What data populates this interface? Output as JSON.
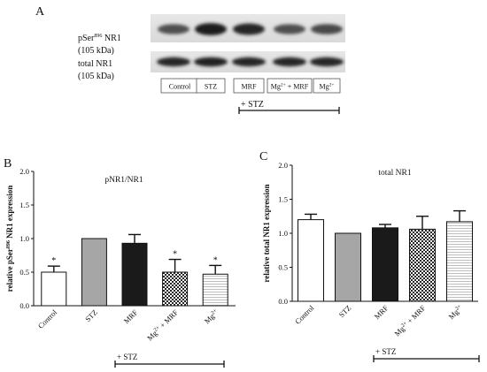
{
  "panel_a": {
    "label": "A",
    "row1_label_pre": "pSer",
    "row1_label_sup": "896",
    "row1_label_post": " NR1",
    "row1_kda": "(105 kDa)",
    "row2_label": "total NR1",
    "row2_kda": "(105 kDa)",
    "lanes": [
      {
        "main": "Control",
        "sup": "",
        "tail": ""
      },
      {
        "main": "STZ",
        "sup": "",
        "tail": ""
      },
      {
        "main": "MRF",
        "sup": "",
        "tail": ""
      },
      {
        "main": "Mg",
        "sup": "2+",
        "tail": " + MRF"
      },
      {
        "main": "Mg",
        "sup": "2+",
        "tail": ""
      }
    ],
    "row1_band_intensity": [
      0.55,
      0.95,
      0.85,
      0.55,
      0.6
    ],
    "row2_band_intensity": [
      0.85,
      0.9,
      0.85,
      0.85,
      0.85
    ],
    "stz_bracket_label": "+ STZ"
  },
  "chart_data": [
    {
      "panel": "B",
      "type": "bar",
      "title": "pNR1/NR1",
      "ylabel_pre": "relative pSer",
      "ylabel_sup": "896",
      "ylabel_post": " NR1 expression",
      "ylim": [
        0.0,
        2.0
      ],
      "yticks": [
        "0.0",
        "0.5",
        "1.0",
        "1.5",
        "2.0"
      ],
      "categories": [
        {
          "main": "Control",
          "sup": "",
          "tail": ""
        },
        {
          "main": "STZ",
          "sup": "",
          "tail": ""
        },
        {
          "main": "MRF",
          "sup": "",
          "tail": ""
        },
        {
          "main": "Mg",
          "sup": "2+",
          "tail": " + MRF"
        },
        {
          "main": "Mg",
          "sup": "2+",
          "tail": ""
        }
      ],
      "values": [
        0.5,
        1.0,
        0.93,
        0.5,
        0.47
      ],
      "errors": [
        0.09,
        0.0,
        0.13,
        0.19,
        0.13
      ],
      "significance": [
        "*",
        "",
        "",
        "*",
        "*"
      ],
      "fills": [
        "white",
        "gray",
        "black",
        "checker",
        "lines"
      ],
      "bracket_label": "+ STZ"
    },
    {
      "panel": "C",
      "type": "bar",
      "title": "total NR1",
      "ylabel": "relative total NR1 expression",
      "ylim": [
        0.0,
        2.0
      ],
      "yticks": [
        "0.0",
        "0.5",
        "1.0",
        "1.5",
        "2.0"
      ],
      "categories": [
        {
          "main": "Control",
          "sup": "",
          "tail": ""
        },
        {
          "main": "STZ",
          "sup": "",
          "tail": ""
        },
        {
          "main": "MRF",
          "sup": "",
          "tail": ""
        },
        {
          "main": "Mg",
          "sup": "2+",
          "tail": " + MRF"
        },
        {
          "main": "Mg",
          "sup": "2+",
          "tail": ""
        }
      ],
      "values": [
        1.2,
        1.0,
        1.08,
        1.06,
        1.17
      ],
      "errors": [
        0.08,
        0.0,
        0.05,
        0.19,
        0.16
      ],
      "significance": [
        "",
        "",
        "",
        "",
        ""
      ],
      "fills": [
        "white",
        "gray",
        "black",
        "checker",
        "lines"
      ],
      "bracket_label": "+ STZ"
    }
  ]
}
